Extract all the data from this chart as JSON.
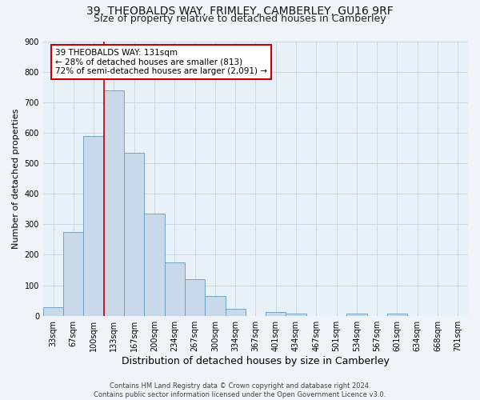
{
  "title1": "39, THEOBALDS WAY, FRIMLEY, CAMBERLEY, GU16 9RF",
  "title2": "Size of property relative to detached houses in Camberley",
  "xlabel": "Distribution of detached houses by size in Camberley",
  "ylabel": "Number of detached properties",
  "bar_labels": [
    "33sqm",
    "67sqm",
    "100sqm",
    "133sqm",
    "167sqm",
    "200sqm",
    "234sqm",
    "267sqm",
    "300sqm",
    "334sqm",
    "367sqm",
    "401sqm",
    "434sqm",
    "467sqm",
    "501sqm",
    "534sqm",
    "567sqm",
    "601sqm",
    "634sqm",
    "668sqm",
    "701sqm"
  ],
  "bar_values": [
    27,
    275,
    590,
    740,
    535,
    335,
    175,
    120,
    65,
    22,
    0,
    12,
    7,
    0,
    0,
    8,
    0,
    8,
    0,
    0,
    0
  ],
  "bar_color": "#c9d9ea",
  "bar_edge_color": "#6699bb",
  "vline_color": "#cc0000",
  "vline_index": 3,
  "annotation_line1": "39 THEOBALDS WAY: 131sqm",
  "annotation_line2": "← 28% of detached houses are smaller (813)",
  "annotation_line3": "72% of semi-detached houses are larger (2,091) →",
  "annotation_box_edge": "#cc0000",
  "annotation_box_face": "#ffffff",
  "ylim": [
    0,
    900
  ],
  "yticks": [
    0,
    100,
    200,
    300,
    400,
    500,
    600,
    700,
    800,
    900
  ],
  "grid_color": "#ccd8e4",
  "bg_color": "#e8f0f8",
  "fig_bg_color": "#f0f4f8",
  "footnote": "Contains HM Land Registry data © Crown copyright and database right 2024.\nContains public sector information licensed under the Open Government Licence v3.0.",
  "title1_fontsize": 10,
  "title2_fontsize": 9,
  "xlabel_fontsize": 9,
  "ylabel_fontsize": 8,
  "tick_fontsize": 7,
  "annotation_fontsize": 7.5,
  "footnote_fontsize": 6
}
